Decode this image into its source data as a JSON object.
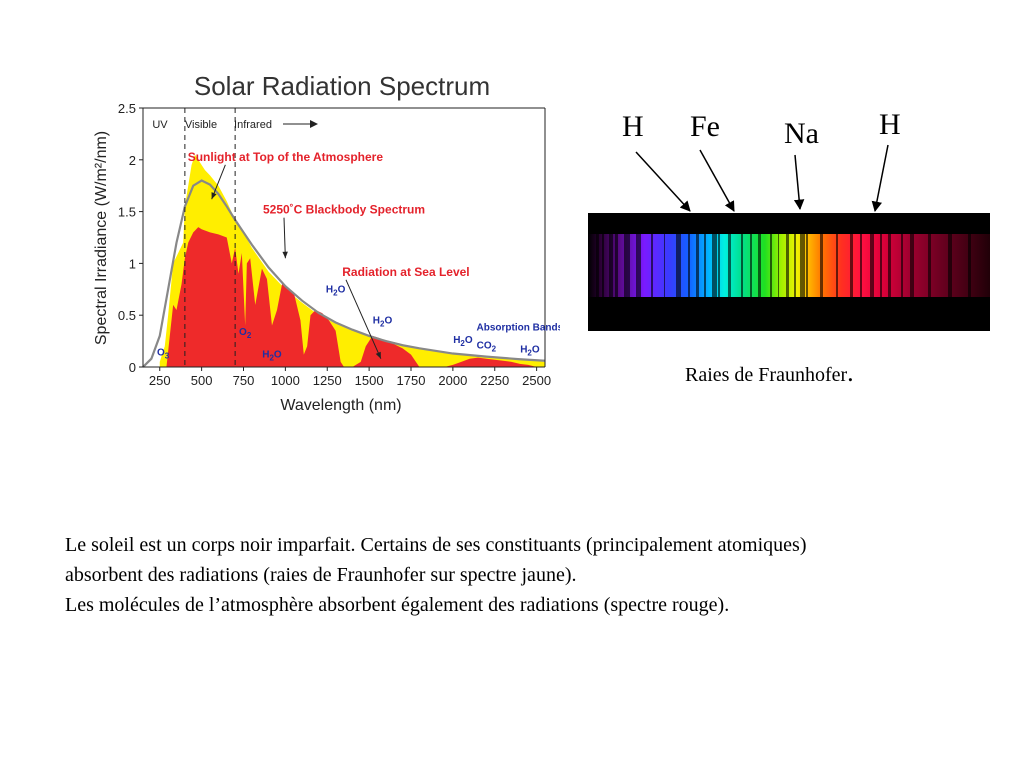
{
  "chart_data": {
    "type": "area",
    "title": "Solar Radiation Spectrum",
    "xlabel": "Wavelength (nm)",
    "ylabel": "Spectral Irradiance (W/m²/nm)",
    "xlim": [
      150,
      2550
    ],
    "ylim": [
      0,
      2.5
    ],
    "xticks": [
      250,
      500,
      750,
      1000,
      1250,
      1500,
      1750,
      2000,
      2250,
      2500
    ],
    "yticks": [
      0,
      0.5,
      1,
      1.5,
      2,
      2.5
    ],
    "region_boundaries": [
      400,
      700
    ],
    "regions": [
      "UV",
      "Visible",
      "Infrared"
    ],
    "series": [
      {
        "name": "Sunlight at Top of the Atmosphere",
        "color": "#ffee00",
        "x": [
          250,
          280,
          300,
          330,
          360,
          390,
          400,
          420,
          440,
          460,
          480,
          500,
          520,
          550,
          600,
          650,
          700,
          750,
          800,
          900,
          1000,
          1100,
          1200,
          1300,
          1400,
          1500,
          1600,
          1700,
          1800,
          2000,
          2200,
          2400,
          2550
        ],
        "values": [
          0.05,
          0.2,
          0.5,
          1.0,
          1.1,
          1.2,
          1.55,
          1.75,
          1.95,
          2.05,
          2.0,
          1.95,
          1.9,
          1.85,
          1.75,
          1.6,
          1.42,
          1.3,
          1.15,
          0.92,
          0.75,
          0.62,
          0.5,
          0.42,
          0.35,
          0.3,
          0.26,
          0.22,
          0.18,
          0.13,
          0.09,
          0.07,
          0.05
        ]
      },
      {
        "name": "5250°C Blackbody Spectrum",
        "color": "#888888",
        "x": [
          150,
          200,
          250,
          300,
          350,
          400,
          450,
          500,
          550,
          600,
          650,
          700,
          750,
          800,
          900,
          1000,
          1100,
          1200,
          1300,
          1400,
          1500,
          1600,
          1700,
          1800,
          2000,
          2200,
          2400,
          2550
        ],
        "values": [
          0.0,
          0.08,
          0.3,
          0.75,
          1.2,
          1.55,
          1.75,
          1.8,
          1.76,
          1.67,
          1.55,
          1.42,
          1.3,
          1.18,
          0.96,
          0.78,
          0.64,
          0.52,
          0.43,
          0.36,
          0.3,
          0.25,
          0.21,
          0.18,
          0.13,
          0.1,
          0.075,
          0.06
        ]
      },
      {
        "name": "Radiation at Sea Level",
        "color": "#ee2a2a",
        "x": [
          290,
          310,
          330,
          350,
          380,
          400,
          420,
          450,
          480,
          500,
          550,
          600,
          650,
          680,
          700,
          720,
          740,
          760,
          770,
          790,
          820,
          860,
          890,
          920,
          950,
          980,
          1000,
          1050,
          1090,
          1110,
          1130,
          1150,
          1180,
          1220,
          1260,
          1300,
          1330,
          1350,
          1400,
          1450,
          1480,
          1520,
          1560,
          1600,
          1650,
          1700,
          1750,
          1800,
          1850,
          1950,
          2000,
          2050,
          2100,
          2150,
          2200,
          2250,
          2300,
          2350,
          2400,
          2450,
          2500,
          2550
        ],
        "values": [
          0.0,
          0.3,
          0.6,
          0.55,
          0.8,
          1.05,
          1.2,
          1.3,
          1.35,
          1.33,
          1.3,
          1.28,
          1.25,
          1.0,
          1.15,
          0.9,
          1.1,
          0.4,
          1.0,
          1.05,
          0.6,
          0.95,
          0.85,
          0.4,
          0.55,
          0.8,
          0.78,
          0.72,
          0.45,
          0.12,
          0.2,
          0.5,
          0.55,
          0.52,
          0.45,
          0.35,
          0.05,
          0.0,
          0.0,
          0.05,
          0.2,
          0.3,
          0.28,
          0.25,
          0.22,
          0.18,
          0.12,
          0.0,
          0.0,
          0.0,
          0.02,
          0.05,
          0.08,
          0.09,
          0.08,
          0.07,
          0.06,
          0.05,
          0.03,
          0.02,
          0.0,
          0.0
        ]
      }
    ],
    "annotations": [
      {
        "text": "Sunlight at Top of the Atmosphere",
        "color": "#e4222b",
        "label_x": 1000,
        "label_y": 1.99,
        "arrow_x": 560,
        "arrow_y": 1.62
      },
      {
        "text": "5250˚C Blackbody Spectrum",
        "color": "#e4222b",
        "label_x": 1350,
        "label_y": 1.48,
        "arrow_x": 1000,
        "arrow_y": 1.05
      },
      {
        "text": "Radiation at Sea Level",
        "color": "#e4222b",
        "label_x": 1720,
        "label_y": 0.88,
        "arrow_x": 1570,
        "arrow_y": 0.08
      }
    ],
    "absorption_labels": [
      {
        "text": "O3",
        "x": 270,
        "y": 0.11
      },
      {
        "text": "O2",
        "x": 760,
        "y": 0.31
      },
      {
        "text": "H2O",
        "x": 920,
        "y": 0.09
      },
      {
        "text": "H2O",
        "x": 1300,
        "y": 0.72
      },
      {
        "text": "H2O",
        "x": 1580,
        "y": 0.42
      },
      {
        "text": "H2O",
        "x": 2060,
        "y": 0.23
      },
      {
        "text": "CO2",
        "x": 2200,
        "y": 0.18
      },
      {
        "text": "H2O",
        "x": 2460,
        "y": 0.14
      },
      {
        "text": "Absorption Bands",
        "x": 2400,
        "y": 0.35,
        "plain": true
      }
    ]
  },
  "fraunhofer": {
    "elements": [
      "H",
      "Fe",
      "Na",
      "H"
    ],
    "caption": "Raies de Fraunhofer",
    "caption_dot": "."
  },
  "body": {
    "line1": "Le soleil est un corps noir imparfait. Certains de ses constituants (principalement atomiques)",
    "line2": "absorbent des radiations (raies de Fraunhofer sur spectre jaune).",
    "line3": "Les molécules de l’atmosphère absorbent également des radiations (spectre rouge)."
  }
}
